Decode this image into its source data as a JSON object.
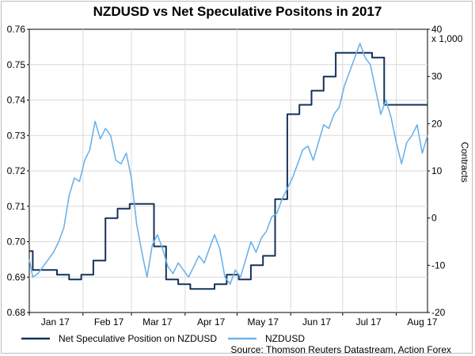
{
  "chart_data": {
    "type": "line",
    "title": "NZDUSD vs Net Speculative Positons in 2017",
    "ylabel_left": "",
    "ylabel_right": "Contracts",
    "right_axis_unit_label": "x 1,000",
    "left_ylim": [
      0.68,
      0.76
    ],
    "left_ticks": [
      "0.76",
      "0.75",
      "0.74",
      "0.73",
      "0.72",
      "0.71",
      "0.70",
      "0.69",
      "0.68"
    ],
    "right_ylim": [
      -20,
      40
    ],
    "right_ticks": [
      "40",
      "30",
      "20",
      "10",
      "0",
      "-10",
      "-20"
    ],
    "x_range": [
      0,
      230
    ],
    "x_tick_labels": [
      "Jan 17",
      "Feb 17",
      "Mar 17",
      "Apr 17",
      "May 17",
      "Jun 17",
      "Jul 17",
      "Aug 17"
    ],
    "x_tick_positions": [
      15,
      46,
      74,
      105,
      135,
      166,
      196,
      227
    ],
    "x_gridlines": [
      0,
      31,
      59,
      90,
      120,
      151,
      181,
      212
    ],
    "legend_position": "bottom-left",
    "source": "Source: Thomson Reuters Datastream, Action Forex",
    "series": [
      {
        "name": "Net Speculative Position on NZDUSD",
        "axis": "right",
        "color": "#14325a",
        "style": "step",
        "x": [
          0,
          2,
          9,
          16,
          23,
          30,
          37,
          44,
          51,
          58,
          65,
          72,
          79,
          86,
          93,
          100,
          107,
          114,
          121,
          128,
          135,
          142,
          149,
          156,
          163,
          170,
          177,
          184,
          191,
          198,
          205,
          212,
          219,
          226,
          230
        ],
        "values": [
          -7,
          -11,
          -11,
          -12,
          -13,
          -12,
          -9,
          0,
          2,
          3,
          3,
          -6,
          -13,
          -14,
          -15,
          -15,
          -14,
          -12,
          -13,
          -10,
          -8,
          4,
          22,
          24,
          27,
          30,
          35,
          35,
          35,
          34,
          24,
          24,
          24,
          24,
          24
        ]
      },
      {
        "name": "NZDUSD",
        "axis": "left",
        "color": "#6cb2ea",
        "style": "line",
        "x": [
          0,
          2,
          5,
          8,
          11,
          14,
          17,
          20,
          23,
          26,
          29,
          32,
          35,
          38,
          41,
          44,
          47,
          50,
          53,
          56,
          59,
          62,
          65,
          68,
          71,
          74,
          77,
          80,
          83,
          86,
          89,
          92,
          95,
          98,
          101,
          104,
          107,
          110,
          113,
          116,
          119,
          122,
          125,
          128,
          131,
          134,
          137,
          140,
          143,
          146,
          149,
          152,
          155,
          158,
          161,
          164,
          167,
          170,
          173,
          176,
          179,
          182,
          185,
          188,
          191,
          194,
          197,
          200,
          203,
          206,
          209,
          212,
          215,
          218,
          221,
          224,
          227,
          230
        ],
        "values": [
          0.695,
          0.69,
          0.691,
          0.693,
          0.695,
          0.697,
          0.7,
          0.704,
          0.713,
          0.718,
          0.717,
          0.723,
          0.726,
          0.734,
          0.729,
          0.732,
          0.73,
          0.723,
          0.722,
          0.725,
          0.718,
          0.705,
          0.697,
          0.69,
          0.699,
          0.702,
          0.698,
          0.693,
          0.691,
          0.694,
          0.692,
          0.69,
          0.693,
          0.696,
          0.694,
          0.698,
          0.702,
          0.698,
          0.69,
          0.688,
          0.692,
          0.69,
          0.695,
          0.7,
          0.697,
          0.701,
          0.703,
          0.707,
          0.708,
          0.712,
          0.715,
          0.718,
          0.722,
          0.726,
          0.727,
          0.723,
          0.728,
          0.733,
          0.732,
          0.736,
          0.738,
          0.744,
          0.748,
          0.752,
          0.756,
          0.752,
          0.75,
          0.743,
          0.736,
          0.74,
          0.735,
          0.728,
          0.722,
          0.728,
          0.73,
          0.733,
          0.725,
          0.73
        ]
      }
    ]
  }
}
